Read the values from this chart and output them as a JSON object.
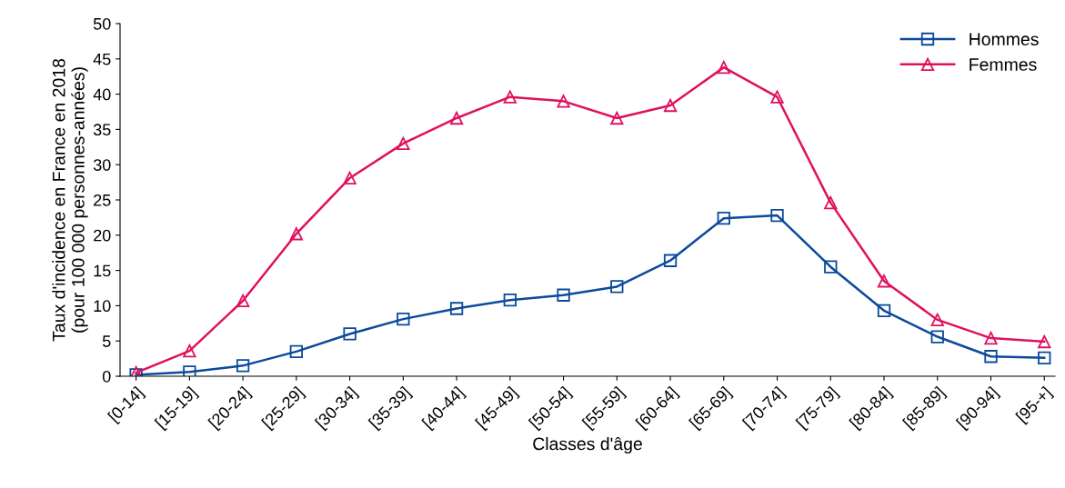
{
  "chart_data": {
    "type": "line",
    "xlabel": "Classes d'âge",
    "ylabel": "Taux d'incidence en France en 2018\n(pour 100 000 personnes-années)",
    "categories": [
      "[0-14]",
      "[15-19]",
      "[20-24]",
      "[25-29]",
      "[30-34]",
      "[35-39]",
      "[40-44]",
      "[45-49]",
      "[50-54]",
      "[55-59]",
      "[60-64]",
      "[65-69]",
      "[70-74]",
      "[75-79]",
      "[80-84]",
      "[85-89]",
      "[90-94]",
      "[95-+]"
    ],
    "series": [
      {
        "name": "Hommes",
        "color": "#0b4a9c",
        "marker": "square",
        "values": [
          0.2,
          0.6,
          1.5,
          3.5,
          6.0,
          8.1,
          9.6,
          10.8,
          11.5,
          12.7,
          16.4,
          22.4,
          22.8,
          15.5,
          9.3,
          5.6,
          2.8,
          2.6
        ]
      },
      {
        "name": "Femmes",
        "color": "#e0105e",
        "marker": "triangle",
        "values": [
          0.5,
          3.6,
          10.7,
          20.2,
          28.1,
          33.0,
          36.6,
          39.6,
          39.0,
          36.6,
          38.4,
          43.8,
          39.6,
          24.6,
          13.5,
          8.0,
          5.4,
          4.9
        ]
      }
    ],
    "ylim": [
      0,
      50
    ],
    "yticks": [
      0,
      5,
      10,
      15,
      20,
      25,
      30,
      35,
      40,
      45,
      50
    ],
    "grid": false,
    "legend": "top right",
    "line_style": "solid"
  }
}
